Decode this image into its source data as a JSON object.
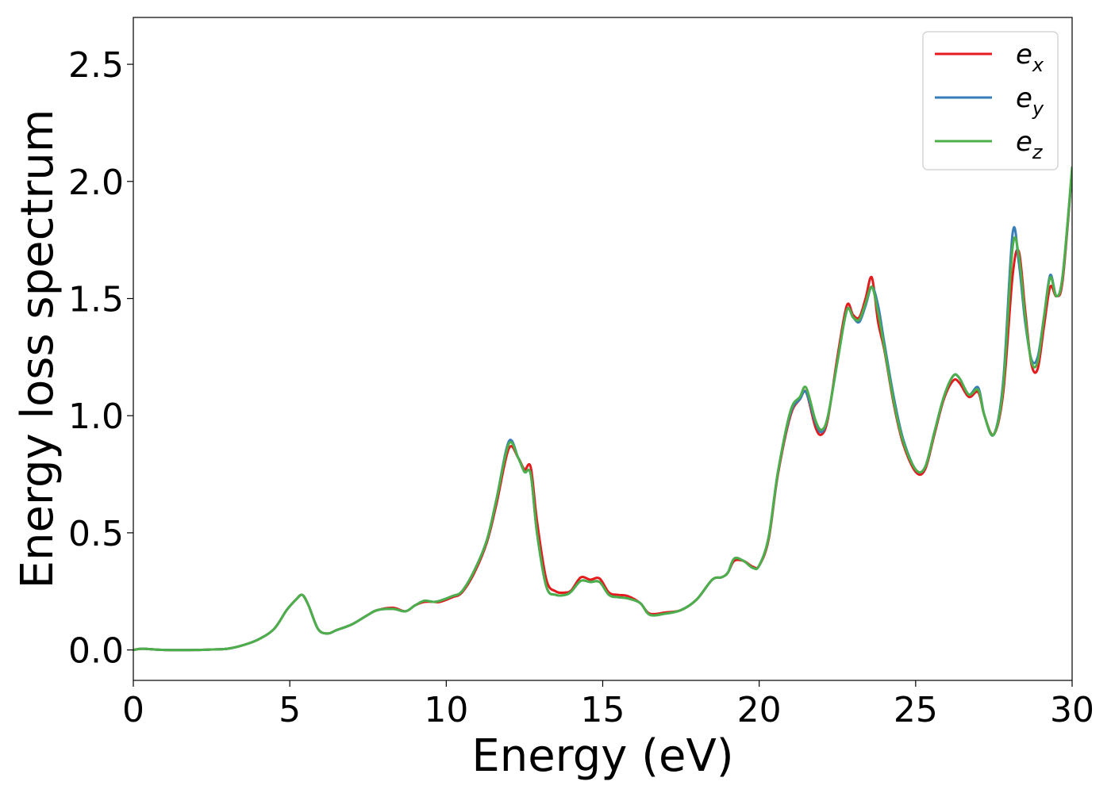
{
  "chart_data": {
    "type": "line",
    "title": "",
    "xlabel": "Energy (eV)",
    "ylabel": "Energy loss spectrum",
    "xlim": [
      0,
      30
    ],
    "ylim": [
      -0.13,
      2.7
    ],
    "xticks": [
      0,
      5,
      10,
      15,
      20,
      25,
      30
    ],
    "xtick_labels": [
      "0",
      "5",
      "10",
      "15",
      "20",
      "25",
      "30"
    ],
    "yticks": [
      0.0,
      0.5,
      1.0,
      1.5,
      2.0,
      2.5
    ],
    "ytick_labels": [
      "0.0",
      "0.5",
      "1.0",
      "1.5",
      "2.0",
      "2.5"
    ],
    "grid": false,
    "legend_position": "top-right",
    "series": [
      {
        "name": "e",
        "subscript": "x",
        "color": "#e41a1c",
        "x": [
          0,
          0.3,
          1,
          2,
          2.5,
          3,
          3.5,
          4,
          4.5,
          4.9,
          5.2,
          5.4,
          5.6,
          5.9,
          6.2,
          6.5,
          7,
          7.5,
          7.8,
          8.3,
          8.7,
          9.0,
          9.3,
          9.6,
          9.8,
          10.2,
          10.5,
          10.9,
          11.3,
          11.6,
          12.0,
          12.3,
          12.5,
          12.7,
          12.9,
          13.2,
          13.5,
          13.8,
          14.0,
          14.3,
          14.6,
          14.9,
          15.2,
          15.5,
          15.8,
          16.2,
          16.5,
          17.0,
          17.5,
          18.0,
          18.5,
          18.8,
          19.0,
          19.2,
          19.5,
          19.8,
          20.0,
          20.3,
          20.6,
          21.0,
          21.3,
          21.5,
          21.8,
          22.0,
          22.2,
          22.5,
          22.8,
          23.0,
          23.2,
          23.4,
          23.6,
          23.8,
          24.0,
          24.3,
          24.6,
          25.0,
          25.3,
          25.6,
          25.9,
          26.2,
          26.4,
          26.7,
          27.0,
          27.2,
          27.5,
          27.8,
          28.1,
          28.3,
          28.5,
          28.7,
          28.9,
          29.1,
          29.3,
          29.5,
          29.7,
          30
        ],
        "values": [
          0.0,
          0.005,
          0.0,
          0.0,
          0.002,
          0.005,
          0.02,
          0.045,
          0.09,
          0.17,
          0.215,
          0.235,
          0.19,
          0.09,
          0.07,
          0.085,
          0.11,
          0.15,
          0.17,
          0.18,
          0.165,
          0.19,
          0.205,
          0.205,
          0.205,
          0.225,
          0.245,
          0.33,
          0.46,
          0.62,
          0.86,
          0.82,
          0.77,
          0.78,
          0.55,
          0.3,
          0.25,
          0.245,
          0.255,
          0.31,
          0.3,
          0.305,
          0.245,
          0.235,
          0.23,
          0.2,
          0.155,
          0.16,
          0.17,
          0.215,
          0.3,
          0.31,
          0.33,
          0.38,
          0.38,
          0.355,
          0.36,
          0.47,
          0.75,
          1.0,
          1.07,
          1.1,
          0.95,
          0.92,
          0.99,
          1.25,
          1.47,
          1.43,
          1.42,
          1.5,
          1.59,
          1.4,
          1.28,
          1.05,
          0.88,
          0.76,
          0.77,
          0.92,
          1.07,
          1.15,
          1.14,
          1.08,
          1.1,
          1.0,
          0.92,
          1.1,
          1.6,
          1.7,
          1.45,
          1.22,
          1.2,
          1.38,
          1.55,
          1.51,
          1.58,
          2.05
        ]
      },
      {
        "name": "e",
        "subscript": "y",
        "color": "#377eb8",
        "x": [
          0,
          0.3,
          1,
          2,
          2.5,
          3,
          3.5,
          4,
          4.5,
          4.9,
          5.2,
          5.4,
          5.6,
          5.9,
          6.2,
          6.5,
          7,
          7.5,
          7.8,
          8.3,
          8.7,
          9.0,
          9.3,
          9.6,
          9.8,
          10.2,
          10.5,
          10.9,
          11.3,
          11.6,
          12.0,
          12.3,
          12.5,
          12.7,
          12.9,
          13.2,
          13.5,
          13.8,
          14.0,
          14.3,
          14.6,
          14.9,
          15.2,
          15.5,
          15.8,
          16.2,
          16.5,
          17.0,
          17.5,
          18.0,
          18.5,
          18.8,
          19.0,
          19.2,
          19.5,
          19.8,
          20.0,
          20.3,
          20.6,
          21.0,
          21.3,
          21.5,
          21.8,
          22.0,
          22.2,
          22.5,
          22.8,
          23.0,
          23.2,
          23.4,
          23.6,
          23.8,
          24.0,
          24.3,
          24.6,
          25.0,
          25.3,
          25.6,
          25.9,
          26.2,
          26.4,
          26.7,
          27.0,
          27.2,
          27.5,
          27.8,
          28.1,
          28.3,
          28.5,
          28.7,
          28.9,
          29.1,
          29.3,
          29.5,
          29.7,
          30
        ],
        "values": [
          0.0,
          0.005,
          0.0,
          0.0,
          0.002,
          0.005,
          0.02,
          0.045,
          0.09,
          0.17,
          0.215,
          0.235,
          0.19,
          0.09,
          0.07,
          0.085,
          0.11,
          0.15,
          0.17,
          0.175,
          0.165,
          0.19,
          0.21,
          0.205,
          0.21,
          0.23,
          0.25,
          0.34,
          0.47,
          0.64,
          0.89,
          0.82,
          0.76,
          0.75,
          0.5,
          0.27,
          0.235,
          0.235,
          0.25,
          0.295,
          0.29,
          0.29,
          0.235,
          0.225,
          0.22,
          0.2,
          0.15,
          0.155,
          0.17,
          0.215,
          0.3,
          0.31,
          0.33,
          0.39,
          0.38,
          0.35,
          0.36,
          0.48,
          0.76,
          1.01,
          1.07,
          1.1,
          0.97,
          0.93,
          1.0,
          1.23,
          1.45,
          1.42,
          1.4,
          1.47,
          1.55,
          1.47,
          1.31,
          1.08,
          0.9,
          0.77,
          0.78,
          0.93,
          1.08,
          1.17,
          1.16,
          1.09,
          1.12,
          1.0,
          0.92,
          1.15,
          1.78,
          1.65,
          1.4,
          1.24,
          1.25,
          1.42,
          1.6,
          1.51,
          1.6,
          2.05
        ]
      },
      {
        "name": "e",
        "subscript": "z",
        "color": "#4daf4a",
        "x": [
          0,
          0.3,
          1,
          2,
          2.5,
          3,
          3.5,
          4,
          4.5,
          4.9,
          5.2,
          5.4,
          5.6,
          5.9,
          6.2,
          6.5,
          7,
          7.5,
          7.8,
          8.3,
          8.7,
          9.0,
          9.3,
          9.6,
          9.8,
          10.2,
          10.5,
          10.9,
          11.3,
          11.6,
          12.0,
          12.3,
          12.5,
          12.7,
          12.9,
          13.2,
          13.5,
          13.8,
          14.0,
          14.3,
          14.6,
          14.9,
          15.2,
          15.5,
          15.8,
          16.2,
          16.5,
          17.0,
          17.5,
          18.0,
          18.5,
          18.8,
          19.0,
          19.2,
          19.5,
          19.8,
          20.0,
          20.3,
          20.6,
          21.0,
          21.3,
          21.5,
          21.8,
          22.0,
          22.2,
          22.5,
          22.8,
          23.0,
          23.2,
          23.4,
          23.6,
          23.8,
          24.0,
          24.3,
          24.6,
          25.0,
          25.3,
          25.6,
          25.9,
          26.2,
          26.4,
          26.7,
          27.0,
          27.2,
          27.5,
          27.8,
          28.1,
          28.3,
          28.5,
          28.7,
          28.9,
          29.1,
          29.3,
          29.5,
          29.7,
          30
        ],
        "values": [
          0.0,
          0.005,
          0.0,
          0.0,
          0.002,
          0.005,
          0.02,
          0.045,
          0.09,
          0.17,
          0.215,
          0.235,
          0.19,
          0.09,
          0.07,
          0.085,
          0.11,
          0.15,
          0.17,
          0.175,
          0.165,
          0.19,
          0.21,
          0.205,
          0.21,
          0.23,
          0.25,
          0.34,
          0.47,
          0.64,
          0.88,
          0.82,
          0.76,
          0.75,
          0.5,
          0.27,
          0.235,
          0.235,
          0.25,
          0.295,
          0.29,
          0.29,
          0.235,
          0.225,
          0.22,
          0.2,
          0.15,
          0.155,
          0.17,
          0.215,
          0.3,
          0.31,
          0.33,
          0.39,
          0.38,
          0.35,
          0.36,
          0.48,
          0.76,
          1.02,
          1.08,
          1.12,
          0.98,
          0.94,
          1.0,
          1.23,
          1.45,
          1.42,
          1.41,
          1.48,
          1.55,
          1.44,
          1.29,
          1.06,
          0.89,
          0.77,
          0.78,
          0.93,
          1.08,
          1.17,
          1.16,
          1.09,
          1.11,
          1.0,
          0.92,
          1.13,
          1.72,
          1.68,
          1.42,
          1.23,
          1.23,
          1.42,
          1.59,
          1.51,
          1.6,
          2.06
        ]
      }
    ]
  }
}
